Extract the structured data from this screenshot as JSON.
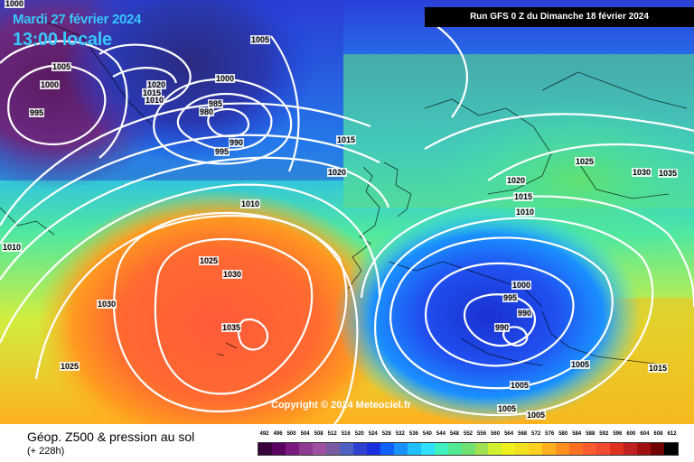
{
  "header": {
    "date": "Mardi 27 février 2024",
    "local_time": "13:00 locale",
    "run": "Run GFS 0 Z du Dimanche 18 février 2024"
  },
  "copyright": "Copyright © 2024 Meteociel.fr",
  "footer": {
    "title": "Géop. Z500 & pression au sol",
    "lead_time": "(+ 228h)"
  },
  "legend": {
    "values": [
      "492",
      "496",
      "500",
      "504",
      "508",
      "512",
      "516",
      "520",
      "524",
      "528",
      "532",
      "536",
      "540",
      "544",
      "548",
      "552",
      "556",
      "560",
      "564",
      "568",
      "572",
      "576",
      "580",
      "584",
      "588",
      "592",
      "596",
      "600",
      "604",
      "608",
      "612"
    ],
    "colors": [
      "#3a003a",
      "#5a0060",
      "#7a1a80",
      "#8e3a90",
      "#a050a0",
      "#7a5aa0",
      "#5060c0",
      "#3040d0",
      "#1a30e0",
      "#1060ff",
      "#1a90ff",
      "#20c0ff",
      "#30e0ff",
      "#40f0c0",
      "#50e890",
      "#70e070",
      "#a0e050",
      "#d0f030",
      "#f0f020",
      "#f0e020",
      "#ffd020",
      "#ffb020",
      "#ff9020",
      "#ff7020",
      "#ff5a30",
      "#f04a30",
      "#e03020",
      "#c02020",
      "#a01010",
      "#700000",
      "#000000"
    ]
  },
  "isobar_labels": [
    "1000",
    "1005",
    "1005",
    "1000",
    "995",
    "1020",
    "1015",
    "1010",
    "1000",
    "985",
    "980",
    "990",
    "995",
    "1015",
    "1020",
    "1010",
    "1025",
    "1030",
    "1035",
    "1030",
    "1025",
    "1010",
    "1020",
    "1015",
    "1010",
    "1025",
    "1030",
    "1035",
    "1000",
    "995",
    "990",
    "990",
    "1005",
    "1005",
    "1015",
    "1005",
    "1005"
  ]
}
